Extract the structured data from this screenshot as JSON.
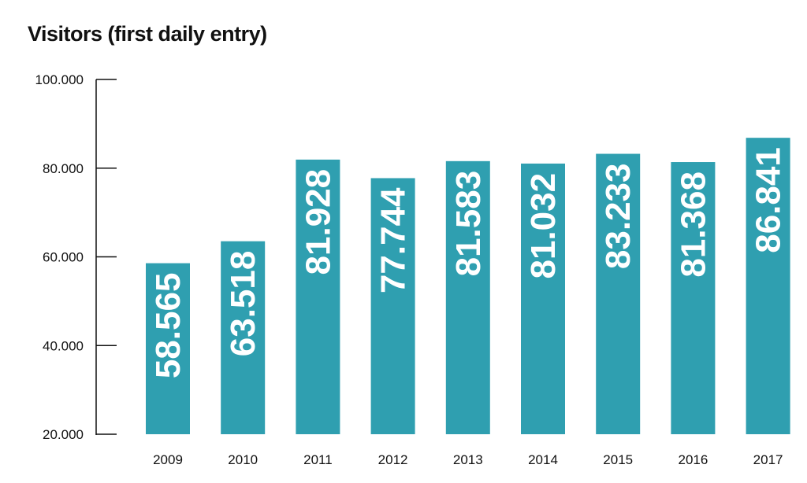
{
  "chart_data": {
    "type": "bar",
    "title": "Visitors (first daily entry)",
    "xlabel": "",
    "ylabel": "",
    "ylim": [
      20000,
      100000
    ],
    "yticks": [
      20000,
      40000,
      60000,
      80000,
      100000
    ],
    "ytick_labels": [
      "20.000",
      "40.000",
      "60.000",
      "80.000",
      "100.000"
    ],
    "categories": [
      "2009",
      "2010",
      "2011",
      "2012",
      "2013",
      "2014",
      "2015",
      "2016",
      "2017"
    ],
    "values": [
      58565,
      63518,
      81928,
      77744,
      81583,
      81032,
      83233,
      81368,
      86841
    ],
    "value_labels": [
      "58.565",
      "63.518",
      "81.928",
      "77.744",
      "81.583",
      "81.032",
      "83.233",
      "81.368",
      "86.841"
    ],
    "bar_color": "#2f9fb0",
    "grid": false,
    "legend": "none"
  }
}
